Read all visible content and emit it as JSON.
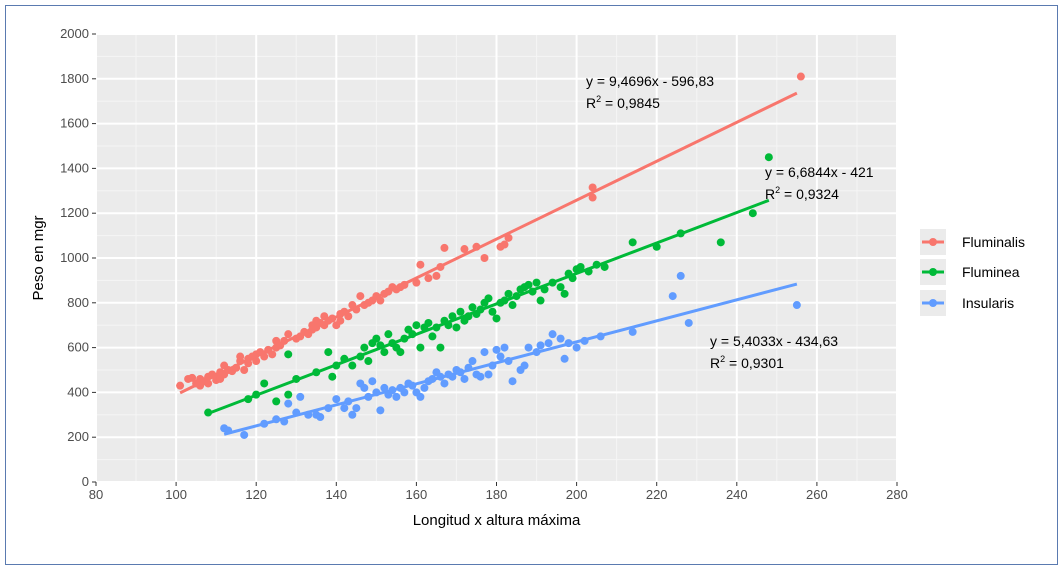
{
  "chart_data": {
    "type": "scatter",
    "title": "",
    "xlabel": "Longitud x altura máxima",
    "ylabel": "Peso en mgr",
    "xlim": [
      80,
      280
    ],
    "ylim": [
      0,
      2000
    ],
    "xticks": [
      80,
      100,
      120,
      140,
      160,
      180,
      200,
      220,
      240,
      260,
      280
    ],
    "yticks": [
      0,
      200,
      400,
      600,
      800,
      1000,
      1200,
      1400,
      1600,
      1800,
      2000
    ],
    "grid": true,
    "legend_position": "right",
    "series": [
      {
        "name": "Fluminalis",
        "color": "#F8766D",
        "points": [
          [
            101,
            430
          ],
          [
            103,
            460
          ],
          [
            104,
            465
          ],
          [
            105,
            440
          ],
          [
            106,
            460
          ],
          [
            106,
            430
          ],
          [
            107,
            450
          ],
          [
            108,
            470
          ],
          [
            108,
            440
          ],
          [
            109,
            480
          ],
          [
            110,
            455
          ],
          [
            110,
            470
          ],
          [
            111,
            490
          ],
          [
            111,
            460
          ],
          [
            112,
            520
          ],
          [
            112,
            480
          ],
          [
            113,
            500
          ],
          [
            114,
            495
          ],
          [
            115,
            510
          ],
          [
            116,
            540
          ],
          [
            116,
            560
          ],
          [
            117,
            500
          ],
          [
            118,
            530
          ],
          [
            118,
            550
          ],
          [
            119,
            560
          ],
          [
            120,
            570
          ],
          [
            120,
            540
          ],
          [
            121,
            580
          ],
          [
            122,
            560
          ],
          [
            123,
            590
          ],
          [
            124,
            570
          ],
          [
            125,
            600
          ],
          [
            125,
            630
          ],
          [
            126,
            610
          ],
          [
            127,
            630
          ],
          [
            128,
            660
          ],
          [
            130,
            640
          ],
          [
            131,
            650
          ],
          [
            132,
            670
          ],
          [
            133,
            660
          ],
          [
            134,
            700
          ],
          [
            134,
            680
          ],
          [
            135,
            690
          ],
          [
            135,
            720
          ],
          [
            136,
            710
          ],
          [
            137,
            700
          ],
          [
            137,
            740
          ],
          [
            138,
            720
          ],
          [
            139,
            730
          ],
          [
            140,
            700
          ],
          [
            141,
            750
          ],
          [
            141,
            720
          ],
          [
            142,
            760
          ],
          [
            143,
            740
          ],
          [
            144,
            790
          ],
          [
            145,
            770
          ],
          [
            146,
            830
          ],
          [
            147,
            790
          ],
          [
            148,
            800
          ],
          [
            149,
            810
          ],
          [
            150,
            830
          ],
          [
            151,
            810
          ],
          [
            152,
            840
          ],
          [
            153,
            850
          ],
          [
            154,
            870
          ],
          [
            155,
            860
          ],
          [
            156,
            870
          ],
          [
            157,
            880
          ],
          [
            160,
            890
          ],
          [
            161,
            970
          ],
          [
            163,
            910
          ],
          [
            165,
            920
          ],
          [
            166,
            960
          ],
          [
            167,
            1045
          ],
          [
            172,
            1040
          ],
          [
            175,
            1050
          ],
          [
            177,
            1000
          ],
          [
            181,
            1050
          ],
          [
            182,
            1060
          ],
          [
            183,
            1090
          ],
          [
            204,
            1270
          ],
          [
            204,
            1315
          ],
          [
            256,
            1810
          ]
        ],
        "trendline": {
          "x": [
            101,
            255
          ],
          "equation": "y = 9,4696x - 596,83",
          "r2": "0,9845"
        }
      },
      {
        "name": "Fluminea",
        "color": "#00BA38",
        "points": [
          [
            108,
            310
          ],
          [
            118,
            370
          ],
          [
            120,
            390
          ],
          [
            122,
            440
          ],
          [
            125,
            360
          ],
          [
            128,
            570
          ],
          [
            128,
            390
          ],
          [
            130,
            460
          ],
          [
            135,
            490
          ],
          [
            138,
            580
          ],
          [
            139,
            470
          ],
          [
            140,
            520
          ],
          [
            142,
            550
          ],
          [
            144,
            520
          ],
          [
            146,
            560
          ],
          [
            147,
            600
          ],
          [
            148,
            540
          ],
          [
            149,
            620
          ],
          [
            150,
            640
          ],
          [
            151,
            610
          ],
          [
            152,
            580
          ],
          [
            153,
            660
          ],
          [
            154,
            620
          ],
          [
            155,
            600
          ],
          [
            156,
            580
          ],
          [
            157,
            640
          ],
          [
            158,
            680
          ],
          [
            159,
            660
          ],
          [
            160,
            700
          ],
          [
            161,
            600
          ],
          [
            162,
            690
          ],
          [
            163,
            710
          ],
          [
            164,
            650
          ],
          [
            165,
            690
          ],
          [
            166,
            600
          ],
          [
            167,
            720
          ],
          [
            168,
            700
          ],
          [
            169,
            740
          ],
          [
            170,
            690
          ],
          [
            171,
            760
          ],
          [
            172,
            720
          ],
          [
            173,
            740
          ],
          [
            174,
            780
          ],
          [
            175,
            750
          ],
          [
            176,
            770
          ],
          [
            177,
            800
          ],
          [
            178,
            820
          ],
          [
            179,
            760
          ],
          [
            180,
            730
          ],
          [
            181,
            800
          ],
          [
            182,
            810
          ],
          [
            183,
            840
          ],
          [
            184,
            790
          ],
          [
            185,
            830
          ],
          [
            186,
            860
          ],
          [
            187,
            870
          ],
          [
            188,
            880
          ],
          [
            189,
            850
          ],
          [
            190,
            890
          ],
          [
            191,
            810
          ],
          [
            192,
            860
          ],
          [
            194,
            890
          ],
          [
            196,
            870
          ],
          [
            197,
            840
          ],
          [
            198,
            930
          ],
          [
            199,
            910
          ],
          [
            200,
            950
          ],
          [
            201,
            960
          ],
          [
            203,
            940
          ],
          [
            205,
            970
          ],
          [
            207,
            960
          ],
          [
            214,
            1070
          ],
          [
            220,
            1050
          ],
          [
            226,
            1110
          ],
          [
            236,
            1070
          ],
          [
            244,
            1200
          ],
          [
            248,
            1450
          ]
        ],
        "trendline": {
          "x": [
            108,
            248
          ],
          "equation": "y = 6,6844x - 421",
          "r2": "0,9324"
        }
      },
      {
        "name": "Insularis",
        "color": "#619CFF",
        "points": [
          [
            112,
            240
          ],
          [
            113,
            230
          ],
          [
            117,
            210
          ],
          [
            122,
            260
          ],
          [
            125,
            280
          ],
          [
            127,
            270
          ],
          [
            128,
            350
          ],
          [
            130,
            310
          ],
          [
            131,
            380
          ],
          [
            133,
            300
          ],
          [
            135,
            300
          ],
          [
            136,
            290
          ],
          [
            138,
            330
          ],
          [
            140,
            370
          ],
          [
            142,
            330
          ],
          [
            143,
            360
          ],
          [
            144,
            300
          ],
          [
            145,
            330
          ],
          [
            146,
            440
          ],
          [
            147,
            420
          ],
          [
            148,
            380
          ],
          [
            149,
            450
          ],
          [
            150,
            400
          ],
          [
            151,
            320
          ],
          [
            152,
            420
          ],
          [
            153,
            390
          ],
          [
            154,
            410
          ],
          [
            155,
            380
          ],
          [
            156,
            420
          ],
          [
            157,
            400
          ],
          [
            158,
            440
          ],
          [
            159,
            430
          ],
          [
            160,
            400
          ],
          [
            161,
            380
          ],
          [
            162,
            420
          ],
          [
            163,
            450
          ],
          [
            164,
            460
          ],
          [
            165,
            490
          ],
          [
            166,
            470
          ],
          [
            167,
            440
          ],
          [
            168,
            480
          ],
          [
            169,
            470
          ],
          [
            170,
            500
          ],
          [
            171,
            490
          ],
          [
            172,
            460
          ],
          [
            173,
            510
          ],
          [
            174,
            540
          ],
          [
            175,
            480
          ],
          [
            176,
            470
          ],
          [
            177,
            580
          ],
          [
            178,
            480
          ],
          [
            179,
            520
          ],
          [
            180,
            590
          ],
          [
            181,
            560
          ],
          [
            182,
            600
          ],
          [
            183,
            540
          ],
          [
            184,
            450
          ],
          [
            186,
            500
          ],
          [
            187,
            520
          ],
          [
            188,
            600
          ],
          [
            190,
            580
          ],
          [
            191,
            610
          ],
          [
            193,
            620
          ],
          [
            194,
            660
          ],
          [
            196,
            640
          ],
          [
            197,
            550
          ],
          [
            198,
            620
          ],
          [
            200,
            600
          ],
          [
            202,
            630
          ],
          [
            206,
            650
          ],
          [
            214,
            670
          ],
          [
            224,
            830
          ],
          [
            226,
            920
          ],
          [
            228,
            710
          ],
          [
            255,
            790
          ]
        ],
        "trendline": {
          "x": [
            112,
            255
          ],
          "equation": "y = 5,4033x - 434,63",
          "r2": "0,9301"
        }
      }
    ]
  }
}
